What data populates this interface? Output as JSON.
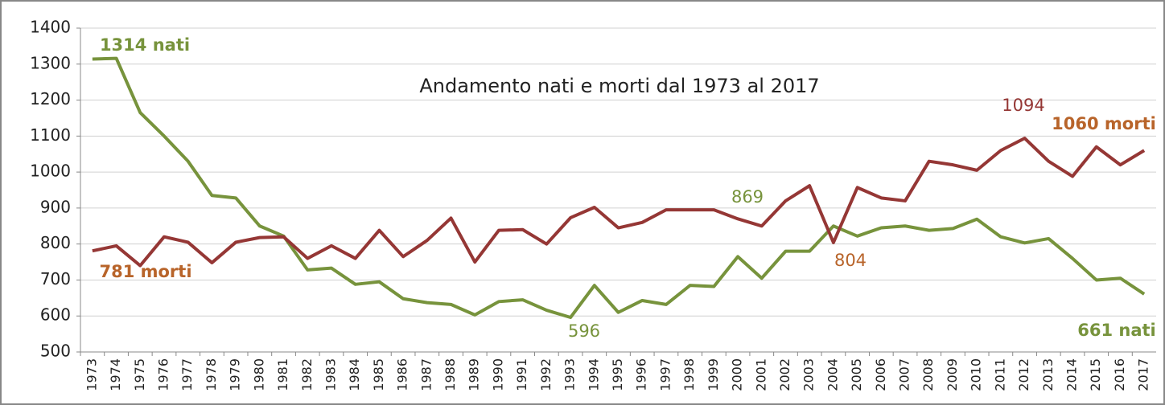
{
  "chart_data": {
    "type": "line",
    "title": "Andamento nati e morti dal 1973 al 2017",
    "categories": [
      "1973",
      "1974",
      "1975",
      "1976",
      "1977",
      "1978",
      "1979",
      "1980",
      "1981",
      "1982",
      "1983",
      "1984",
      "1985",
      "1986",
      "1987",
      "1988",
      "1989",
      "1990",
      "1991",
      "1992",
      "1993",
      "1994",
      "1995",
      "1996",
      "1997",
      "1998",
      "1999",
      "2000",
      "2001",
      "2002",
      "2003",
      "2004",
      "2005",
      "2006",
      "2007",
      "2008",
      "2009",
      "2010",
      "2011",
      "2012",
      "2013",
      "2014",
      "2015",
      "2016",
      "2017"
    ],
    "series": [
      {
        "color": "#77933c",
        "values": [
          1314,
          1316,
          1165,
          1100,
          1030,
          935,
          928,
          850,
          822,
          728,
          733,
          688,
          695,
          648,
          637,
          632,
          603,
          640,
          645,
          616,
          596,
          685,
          610,
          643,
          632,
          685,
          682,
          765,
          705,
          780,
          780,
          850,
          822,
          845,
          850,
          838,
          843,
          869,
          820,
          803,
          815,
          760,
          700,
          705,
          661
        ]
      },
      {
        "color": "#953735",
        "values": [
          781,
          795,
          740,
          820,
          805,
          748,
          805,
          818,
          820,
          760,
          795,
          760,
          838,
          765,
          810,
          872,
          750,
          838,
          840,
          800,
          873,
          902,
          845,
          860,
          895,
          895,
          895,
          870,
          850,
          920,
          962,
          804,
          957,
          928,
          920,
          1030,
          1020,
          1005,
          1060,
          1094,
          1030,
          988,
          1070,
          1020,
          1060
        ]
      }
    ],
    "annotations": [
      {
        "text": "1314 nati",
        "color": "#77933c"
      },
      {
        "text": "781 morti",
        "color": "#b8642a"
      },
      {
        "text": "596",
        "color": "#77933c"
      },
      {
        "text": "804",
        "color": "#b8642a"
      },
      {
        "text": "869",
        "color": "#77933c"
      },
      {
        "text": "1094",
        "color": "#953735"
      },
      {
        "text": "1060 morti",
        "color": "#b8642a"
      },
      {
        "text": "661 nati",
        "color": "#77933c"
      }
    ],
    "ylim": [
      500,
      1400
    ],
    "yticks": [
      500,
      600,
      700,
      800,
      900,
      1000,
      1100,
      1200,
      1300,
      1400
    ],
    "grid": true
  }
}
